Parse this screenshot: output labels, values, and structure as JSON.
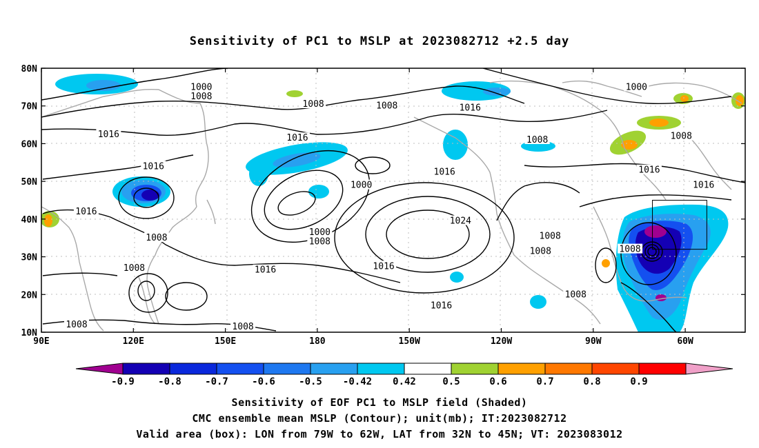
{
  "title": "Sensitivity of PC1 to MSLP at 2023082712 +2.5 day",
  "map": {
    "lon_labels": [
      "90E",
      "120E",
      "150E",
      "180",
      "150W",
      "120W",
      "90W",
      "60W"
    ],
    "lat_labels": [
      "80N",
      "70N",
      "60N",
      "50N",
      "40N",
      "30N",
      "20N",
      "10N"
    ],
    "lon_range": [
      90,
      310
    ],
    "lat_range": [
      10,
      80
    ],
    "valid_box": {
      "lon": [
        281,
        298
      ],
      "lat": [
        32,
        45
      ]
    },
    "contour_labels": [
      {
        "text": "1000",
        "lon": 140,
        "lat": 75
      },
      {
        "text": "1008",
        "lon": 140,
        "lat": 72.5
      },
      {
        "text": "1008",
        "lon": 175,
        "lat": 70.5
      },
      {
        "text": "1008",
        "lon": 198,
        "lat": 70
      },
      {
        "text": "1016",
        "lon": 224,
        "lat": 69.5
      },
      {
        "text": "1000",
        "lon": 276,
        "lat": 75
      },
      {
        "text": "1008",
        "lon": 290,
        "lat": 62
      },
      {
        "text": "1016",
        "lon": 111,
        "lat": 62.5
      },
      {
        "text": "1016",
        "lon": 170,
        "lat": 61.5
      },
      {
        "text": "1008",
        "lon": 245,
        "lat": 61
      },
      {
        "text": "1016",
        "lon": 125,
        "lat": 54
      },
      {
        "text": "1016",
        "lon": 216,
        "lat": 52.5
      },
      {
        "text": "1000",
        "lon": 190,
        "lat": 49
      },
      {
        "text": "1016",
        "lon": 280,
        "lat": 53
      },
      {
        "text": "1016",
        "lon": 297,
        "lat": 49
      },
      {
        "text": "1016",
        "lon": 104,
        "lat": 42
      },
      {
        "text": "1024",
        "lon": 221,
        "lat": 39.5
      },
      {
        "text": "1000",
        "lon": 177,
        "lat": 36.5
      },
      {
        "text": "1008",
        "lon": 177,
        "lat": 34
      },
      {
        "text": "1008",
        "lon": 126,
        "lat": 35
      },
      {
        "text": "1008",
        "lon": 249,
        "lat": 35.5
      },
      {
        "text": "1008",
        "lon": 246,
        "lat": 31.5
      },
      {
        "text": "1008",
        "lon": 274,
        "lat": 32
      },
      {
        "text": "1008",
        "lon": 119,
        "lat": 27
      },
      {
        "text": "1016",
        "lon": 160,
        "lat": 26.5
      },
      {
        "text": "1016",
        "lon": 197,
        "lat": 27.5
      },
      {
        "text": "1016",
        "lon": 215,
        "lat": 17
      },
      {
        "text": "1008",
        "lon": 257,
        "lat": 20
      },
      {
        "text": "1008",
        "lon": 101,
        "lat": 12
      },
      {
        "text": "1008",
        "lon": 153,
        "lat": 11.5
      }
    ]
  },
  "colorbar": {
    "labels": [
      "-0.9",
      "-0.8",
      "-0.7",
      "-0.6",
      "-0.5",
      "-0.42",
      "0.42",
      "0.5",
      "0.6",
      "0.7",
      "0.8",
      "0.9"
    ],
    "colors": [
      "#a00090",
      "#1400b4",
      "#0a28dc",
      "#1450f0",
      "#1e78f0",
      "#28a0f0",
      "#00c8f0",
      "#ffffff",
      "#a0d232",
      "#ffa000",
      "#ff7800",
      "#ff4600",
      "#ff0000",
      "#f0a0c8"
    ]
  },
  "captions": {
    "line1": "Sensitivity of EOF PC1 to MSLP field (Shaded)",
    "line2": "CMC ensemble mean MSLP (Contour); unit(mb); IT:2023082712",
    "line3": "Valid area (box): LON from 79W to 62W, LAT from 32N to 45N; VT: 2023083012"
  }
}
